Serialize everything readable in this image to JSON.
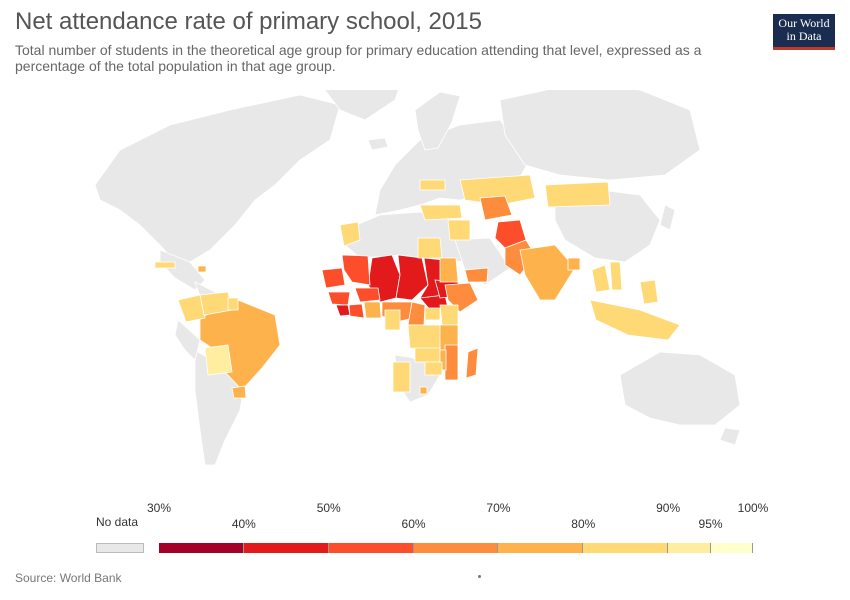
{
  "header": {
    "title": "Net attendance rate of primary school, 2015",
    "subtitle": "Total number of students in the theoretical age group for primary education attending that level, expressed as a percentage of the total population in that age group."
  },
  "logo": {
    "line1": "Our World",
    "line2": "in Data"
  },
  "source": "Source: World Bank",
  "colors": {
    "no_data": "#e8e8e8",
    "border": "#ffffff",
    "bins": [
      "#a50026",
      "#e31a1c",
      "#fc4e2a",
      "#fd8d3c",
      "#feb24c",
      "#fed976",
      "#ffeda0",
      "#ffffcc"
    ]
  },
  "legend": {
    "no_data_label": "No data",
    "ticks": [
      "30%",
      "40%",
      "50%",
      "60%",
      "70%",
      "80%",
      "90%",
      "95%",
      "100%"
    ]
  },
  "chart_data": {
    "type": "choropleth",
    "year": 2015,
    "unit": "%",
    "bins": [
      30,
      40,
      50,
      60,
      70,
      80,
      90,
      95,
      100
    ],
    "regions": [
      {
        "name": "Mali",
        "bin": 1
      },
      {
        "name": "Niger",
        "bin": 1
      },
      {
        "name": "Chad",
        "bin": 1
      },
      {
        "name": "Mauritania",
        "bin": 2
      },
      {
        "name": "Senegal",
        "bin": 2
      },
      {
        "name": "Guinea",
        "bin": 2
      },
      {
        "name": "Burkina Faso",
        "bin": 2
      },
      {
        "name": "Liberia",
        "bin": 1
      },
      {
        "name": "Cote d'Ivoire",
        "bin": 2
      },
      {
        "name": "Nigeria",
        "bin": 3
      },
      {
        "name": "Ghana",
        "bin": 4
      },
      {
        "name": "Cameroon",
        "bin": 3
      },
      {
        "name": "Central African Republic",
        "bin": 1
      },
      {
        "name": "South Sudan",
        "bin": 1
      },
      {
        "name": "Ethiopia",
        "bin": 3
      },
      {
        "name": "Yemen",
        "bin": 3
      },
      {
        "name": "Morocco",
        "bin": 5
      },
      {
        "name": "Egypt",
        "bin": 5
      },
      {
        "name": "Sudan",
        "bin": 4
      },
      {
        "name": "Kenya",
        "bin": 5
      },
      {
        "name": "Uganda",
        "bin": 5
      },
      {
        "name": "Tanzania",
        "bin": 4
      },
      {
        "name": "DR Congo",
        "bin": 5
      },
      {
        "name": "Gabon",
        "bin": 5
      },
      {
        "name": "Zambia",
        "bin": 5
      },
      {
        "name": "Mozambique",
        "bin": 3
      },
      {
        "name": "Malawi",
        "bin": 4
      },
      {
        "name": "Zimbabwe",
        "bin": 5
      },
      {
        "name": "Namibia",
        "bin": 5
      },
      {
        "name": "Madagascar",
        "bin": 3
      },
      {
        "name": "Lesotho",
        "bin": 4
      },
      {
        "name": "Afghanistan",
        "bin": 2
      },
      {
        "name": "Pakistan",
        "bin": 3
      },
      {
        "name": "India",
        "bin": 4
      },
      {
        "name": "Bangladesh",
        "bin": 4
      },
      {
        "name": "Kazakhstan",
        "bin": 5
      },
      {
        "name": "Mongolia",
        "bin": 5
      },
      {
        "name": "Uzbekistan",
        "bin": 3
      },
      {
        "name": "Turkey",
        "bin": 5
      },
      {
        "name": "Iraq",
        "bin": 5
      },
      {
        "name": "Thailand",
        "bin": 5
      },
      {
        "name": "Vietnam",
        "bin": 5
      },
      {
        "name": "Philippines",
        "bin": 5
      },
      {
        "name": "Indonesia",
        "bin": 5
      },
      {
        "name": "Brazil",
        "bin": 4
      },
      {
        "name": "Colombia",
        "bin": 5
      },
      {
        "name": "Venezuela",
        "bin": 5
      },
      {
        "name": "Bolivia",
        "bin": 6
      },
      {
        "name": "Uruguay",
        "bin": 4
      },
      {
        "name": "Guyana",
        "bin": 5
      },
      {
        "name": "Haiti",
        "bin": 4
      },
      {
        "name": "Cuba",
        "bin": 5
      },
      {
        "name": "Ukraine",
        "bin": 5
      }
    ]
  }
}
